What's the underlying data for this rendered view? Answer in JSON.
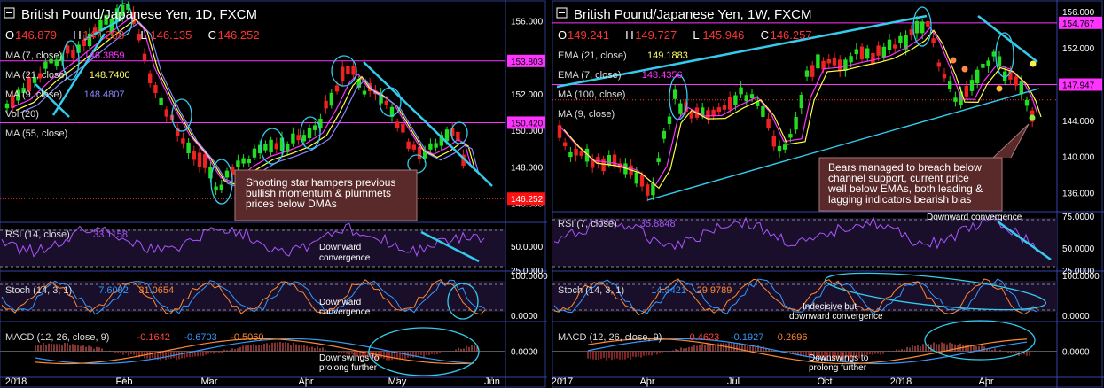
{
  "chart_data": [
    {
      "type": "line",
      "title": "British Pound/Japanese Yen, 1D, FXCM",
      "ohlc": {
        "o_label": "O",
        "o": "146.879",
        "h_label": "H",
        "h": "147.208",
        "l_label": "L",
        "l": "146.135",
        "c_label": "C",
        "c": "146.252"
      },
      "indicators": [
        {
          "name": "MA (7, close)",
          "value": "146.3859",
          "color": "#ff33ff"
        },
        {
          "name": "MA (21, close)",
          "value": "148.7400",
          "color": "#ffff66"
        },
        {
          "name": "MA (9, close)",
          "value": "148.4807",
          "color": "#8888ff"
        },
        {
          "name": "Vol (20)",
          "value": "",
          "color": "#dddddd"
        },
        {
          "name": "MA (55, close)",
          "value": "",
          "color": "#dddddd"
        }
      ],
      "x_ticks": [
        "2018",
        "Feb",
        "Mar",
        "Apr",
        "May",
        "Jun"
      ],
      "y_ticks": [
        "156.000",
        "152.000",
        "150.000",
        "148.000",
        "146.000"
      ],
      "ylim": [
        145,
        157
      ],
      "price_tags": [
        {
          "label": "153.803",
          "value": 153.803,
          "bg": "#ff33ff",
          "fg": "#000000"
        },
        {
          "label": "150.420",
          "value": 150.42,
          "bg": "#ff33ff",
          "fg": "#000000"
        },
        {
          "label": "146.252",
          "value": 146.252,
          "bg": "#ff1111",
          "fg": "#ffffff"
        }
      ],
      "h_lines": [
        153.803,
        150.42
      ],
      "annotation": "Shooting star hampers previous bullish momentum & plummets prices below DMAs",
      "rsi": {
        "label": "RSI (14, close)",
        "value": "33.1158",
        "note": "Downward convergence",
        "ticks": [
          "50.0000",
          "25.0000"
        ]
      },
      "stoch": {
        "label": "Stoch (14, 3, 1)",
        "k": "7.6082",
        "d": "31.0654",
        "note": "Downward convergence",
        "ticks": [
          "100.0000",
          "0.0000"
        ]
      },
      "macd": {
        "label": "MACD (12, 26, close, 9)",
        "v1": "-0.1642",
        "v2": "-0.6703",
        "v3": "-0.5060",
        "note": "Downswings to prolong further",
        "ticks": [
          "0.0000"
        ]
      }
    },
    {
      "type": "line",
      "title": "British Pound/Japanese Yen, 1W, FXCM",
      "ohlc": {
        "o_label": "O",
        "o": "149.241",
        "h_label": "H",
        "h": "149.727",
        "l_label": "L",
        "l": "145.946",
        "c_label": "C",
        "c": "146.257"
      },
      "indicators": [
        {
          "name": "EMA (21, close)",
          "value": "149.1883",
          "color": "#ffff66"
        },
        {
          "name": "EMA (7, close)",
          "value": "148.4356",
          "color": "#ff33ff"
        },
        {
          "name": "MA (100, close)",
          "value": "",
          "color": "#dddddd"
        },
        {
          "name": "MA (9, close)",
          "value": "",
          "color": "#dddddd"
        }
      ],
      "x_ticks": [
        "2017",
        "Apr",
        "Jul",
        "Oct",
        "2018",
        "Apr"
      ],
      "y_ticks": [
        "156.000",
        "152.000",
        "148.000",
        "144.000",
        "140.000",
        "136.000"
      ],
      "ylim": [
        134,
        157
      ],
      "price_tags": [
        {
          "label": "154.767",
          "value": 154.767,
          "bg": "#ff33ff",
          "fg": "#000000"
        },
        {
          "label": "147.947",
          "value": 147.947,
          "bg": "#ff33ff",
          "fg": "#000000"
        }
      ],
      "h_lines": [
        154.767,
        147.947
      ],
      "annotation": "Bears managed to breach below channel support, current price well below EMAs, both leading & lagging indicators bearish bias",
      "rsi": {
        "label": "RSI (7, close)",
        "value": "35.8848",
        "note": "Downward convergence",
        "ticks": [
          "75.0000",
          "50.0000",
          "25.0000"
        ]
      },
      "stoch": {
        "label": "Stoch (14, 3, 1)",
        "k": "14.3421",
        "d": "29.9789",
        "note": "Indecisive but downward convergence",
        "ticks": [
          "100.0000",
          "0.0000"
        ]
      },
      "macd": {
        "label": "MACD (12, 26, close, 9)",
        "v1": "0.4623",
        "v2": "-0.1927",
        "v3": "0.2696",
        "note": "Downswings to prolong further",
        "ticks": [
          "0.0000"
        ]
      }
    }
  ]
}
